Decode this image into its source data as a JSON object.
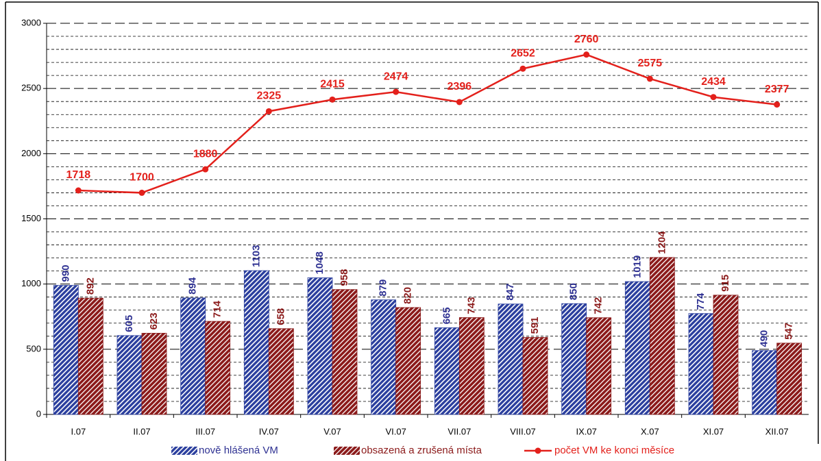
{
  "chart_data": {
    "type": "bar",
    "categories": [
      "I.07",
      "II.07",
      "III.07",
      "IV.07",
      "V.07",
      "VI.07",
      "VII.07",
      "VIII.07",
      "IX.07",
      "X.07",
      "XI.07",
      "XII.07"
    ],
    "series": [
      {
        "name": "nově hlášená VM",
        "type": "bar",
        "color": "#2b3f9e",
        "label_color": "#2e3192",
        "values": [
          990,
          605,
          894,
          1103,
          1048,
          879,
          665,
          847,
          850,
          1019,
          774,
          490
        ]
      },
      {
        "name": "obsazená a zrušená místa",
        "type": "bar",
        "color": "#8b1a1a",
        "label_color": "#8b1a1a",
        "values": [
          892,
          623,
          714,
          658,
          958,
          820,
          743,
          591,
          742,
          1204,
          915,
          547
        ]
      },
      {
        "name": "počet VM ke konci měsíce",
        "type": "line",
        "color": "#e3201b",
        "label_color": "#e3201b",
        "values": [
          1718,
          1700,
          1880,
          2325,
          2415,
          2474,
          2396,
          2652,
          2760,
          2575,
          2434,
          2377
        ]
      }
    ],
    "ylim": [
      0,
      3000
    ],
    "yticks": [
      0,
      500,
      1000,
      1500,
      2000,
      2500,
      3000
    ],
    "minor_yticks": [
      100,
      200,
      300,
      400,
      600,
      700,
      800,
      900,
      1100,
      1200,
      1300,
      1400,
      1600,
      1700,
      1800,
      1900,
      2100,
      2200,
      2300,
      2400,
      2600,
      2700,
      2800,
      2900
    ],
    "grid": true,
    "legend": "bottom"
  }
}
